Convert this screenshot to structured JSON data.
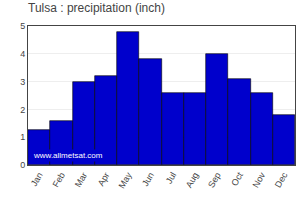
{
  "chart_data": {
    "type": "bar",
    "title": "Tulsa : precipitation (inch)",
    "categories": [
      "Jan",
      "Feb",
      "Mar",
      "Apr",
      "May",
      "Jun",
      "Jul",
      "Aug",
      "Sep",
      "Oct",
      "Nov",
      "Dec"
    ],
    "values": [
      1.25,
      1.6,
      3.0,
      3.2,
      4.8,
      3.8,
      2.6,
      2.6,
      4.0,
      3.1,
      2.6,
      1.8
    ],
    "color": "#0000CC",
    "ylim": [
      0,
      5
    ],
    "yticks": [
      0,
      1,
      2,
      3,
      4,
      5
    ],
    "grid": true,
    "annotations": [
      "www.allmetsat.com"
    ]
  }
}
